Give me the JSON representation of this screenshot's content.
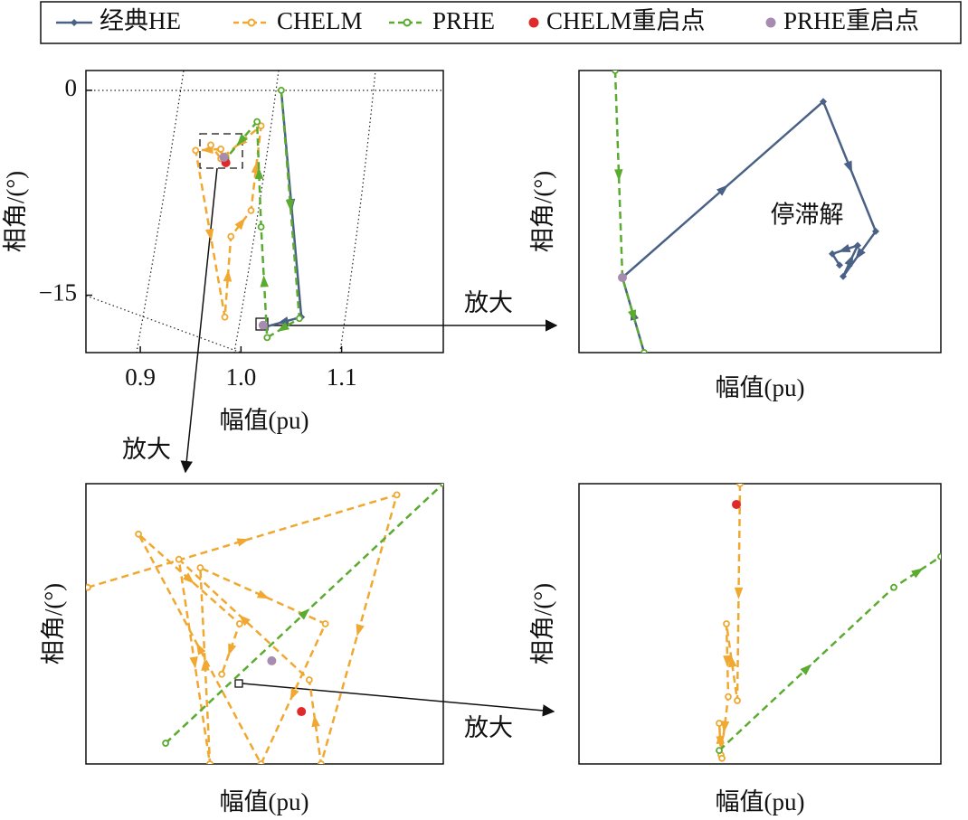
{
  "legend": [
    {
      "name": "经典HE",
      "color": "#4a6186"
    },
    {
      "name": "CHELM",
      "color": "#f0a830"
    },
    {
      "name": "PRHE",
      "color": "#5aab2f"
    },
    {
      "name": "CHELM重启点",
      "color": "#e02a2a"
    },
    {
      "name": "PRHE重启点",
      "color": "#a78bb0"
    }
  ],
  "annotations": [
    "放大",
    "放大",
    "放大"
  ],
  "chart_data": [
    {
      "type": "line",
      "xlabel": "幅值(pu)",
      "ylabel": "相角/(°)",
      "xlim": [
        0.846,
        1.201
      ],
      "ylim": [
        -19.2,
        1.45
      ],
      "xticks": [
        0.9,
        {
          "value": 1,
          "label": "1.0"
        },
        1.1
      ],
      "yticks": [
        0,
        {
          "value": -15,
          "label": "−15"
        }
      ],
      "series": [
        {
          "color": "#f0a830",
          "style": "dashed",
          "x": [
            0.98,
            0.955,
            0.984,
            0.99,
            1.01,
            1.02,
            0.98,
            0.97,
            0.985
          ],
          "values": [
            -4.3,
            -4.4,
            -16.6,
            -10.7,
            -8.8,
            -2.6,
            -5.0,
            -4.0,
            -4.8
          ]
        },
        {
          "color": "#4a6186",
          "style": "solid",
          "x": [
            1.04,
            1.06,
            1.025
          ],
          "values": [
            0,
            -16.6,
            -17.3
          ]
        },
        {
          "color": "#5aab2f",
          "style": "dashed",
          "x": [
            1.04,
            1.058,
            1.026,
            1.02,
            1.016,
            0.985
          ],
          "values": [
            0,
            -16.7,
            -18.1,
            -10,
            -2.3,
            -5.0
          ]
        }
      ],
      "points": [
        {
          "color": "#e02a2a",
          "x": 0.985,
          "y": -5.3
        },
        {
          "color": "#a78bb0",
          "x": 1.022,
          "y": -17.2
        },
        {
          "color": "#a78bb0",
          "x": 0.983,
          "y": -4.9
        }
      ]
    },
    {
      "type": "line",
      "xlabel": "幅值(pu)",
      "ylabel": "相角/(°)",
      "xlim": [
        0,
        100
      ],
      "ylim": [
        0,
        100
      ],
      "annotations": [
        "停滞解"
      ],
      "series": [
        {
          "color": "#4a6186",
          "style": "solid",
          "x": [
            18,
            12,
            67.5,
            82,
            73,
            77,
            70,
            72
          ],
          "values": [
            0,
            26.6,
            89,
            43,
            27,
            38,
            35,
            31
          ]
        },
        {
          "color": "#5aab2f",
          "style": "dashed",
          "x": [
            10,
            12,
            18
          ],
          "values": [
            100,
            26.6,
            0
          ]
        }
      ],
      "points": [
        {
          "color": "#a78bb0",
          "x": 12,
          "y": 26.6
        }
      ]
    },
    {
      "type": "line",
      "xlabel": "幅值(pu)",
      "ylabel": "相角/(°)",
      "xlim": [
        0,
        100
      ],
      "ylim": [
        0,
        100
      ],
      "series": [
        {
          "color": "#f0a830",
          "style": "dashed",
          "x": [
            0.5,
            87,
            65.8,
            62.5,
            26,
            34.7,
            32,
            67,
            49,
            14.7,
            43,
            38
          ],
          "values": [
            63,
            96,
            0,
            30,
            73,
            0,
            70,
            50,
            0,
            82,
            50,
            32
          ]
        },
        {
          "color": "#5aab2f",
          "style": "dashed",
          "x": [
            22.3,
            100
          ],
          "values": [
            7.4,
            100
          ]
        }
      ],
      "points": [
        {
          "color": "#e02a2a",
          "x": 60.3,
          "y": 18.7
        },
        {
          "color": "#a78bb0",
          "x": 52,
          "y": 36.8
        }
      ]
    },
    {
      "type": "line",
      "xlabel": "幅值(pu)",
      "ylabel": "相角/(°)",
      "xlim": [
        0,
        100
      ],
      "ylim": [
        0,
        100
      ],
      "series": [
        {
          "color": "#f0a830",
          "style": "dashed",
          "x": [
            44.5,
            43.75,
            40.75,
            41.25,
            39.25,
            38.75,
            39.5
          ],
          "values": [
            100,
            22.6,
            50,
            24,
            3.2,
            14.5,
            2
          ]
        },
        {
          "color": "#5aab2f",
          "style": "dashed",
          "x": [
            38.75,
            87,
            100
          ],
          "values": [
            4.8,
            63,
            74
          ]
        }
      ],
      "points": [
        {
          "color": "#e02a2a",
          "x": 43.5,
          "y": 92.6
        }
      ]
    }
  ]
}
